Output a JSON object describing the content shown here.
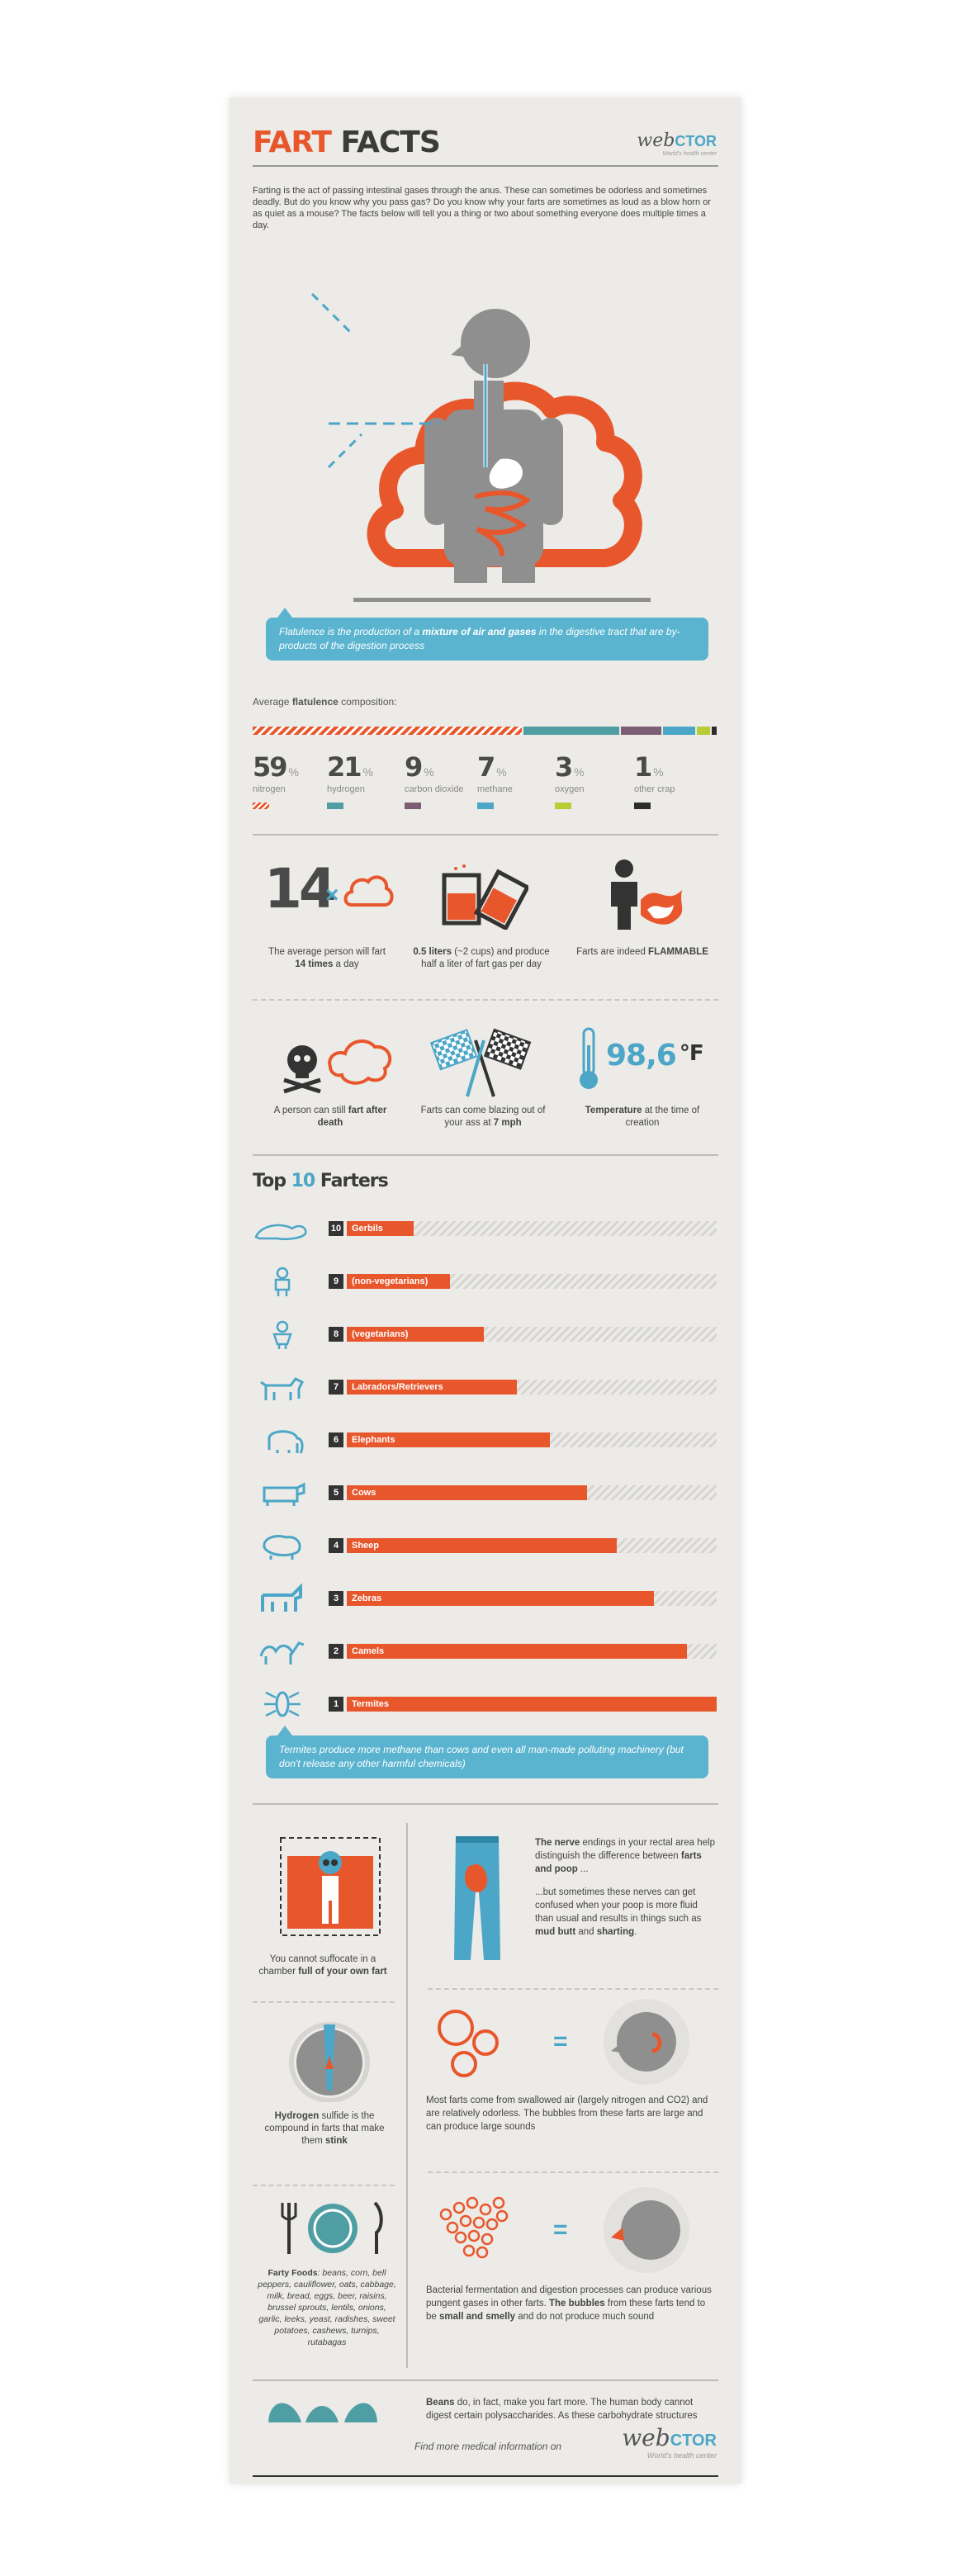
{
  "header": {
    "title_part1": "FART",
    "title_part2": "FACTS",
    "logo_main": "web",
    "logo_accent": "CTOR",
    "logo_tagline": "World's health center"
  },
  "intro": "Farting is the act of passing intestinal gases through the anus. These can sometimes be odorless and sometimes deadly. But do you know why you pass gas? Do you know why your farts are sometimes as loud as a blow horn or as quiet as a mouse? The facts below will tell you a thing or two about something everyone does multiple times a day.",
  "definition": {
    "pre": "Flatulence is the production of a ",
    "bold": "mixture of air and gases",
    "post": " in the digestive tract that are by-products of the digestion process"
  },
  "composition": {
    "label_pre": "Average ",
    "label_bold": "flatulence",
    "label_post": " composition:",
    "items": [
      {
        "value": "59",
        "unit": "%",
        "name": "nitrogen",
        "color": "#e8572c"
      },
      {
        "value": "21",
        "unit": "%",
        "name": "hydrogen",
        "color": "#4f9ea4"
      },
      {
        "value": "9",
        "unit": "%",
        "name": "carbon dioxide",
        "color": "#7b5d74"
      },
      {
        "value": "7",
        "unit": "%",
        "name": "methane",
        "color": "#4ca6c7"
      },
      {
        "value": "3",
        "unit": "%",
        "name": "oxygen",
        "color": "#b7cc35"
      },
      {
        "value": "1",
        "unit": "%",
        "name": "other crap",
        "color": "#2c2c2c"
      }
    ]
  },
  "facts_row1": {
    "times_number": "14",
    "times_symbol": "×",
    "fact1_pre": "The average person will fart",
    "fact1_bold": "14 times",
    "fact1_post": " a day",
    "fact2_bold": "0.5 liters",
    "fact2_post": " (~2 cups) and produce half a liter of fart gas per day",
    "fact3_pre": "Farts are indeed ",
    "fact3_bold": "FLAMMABLE"
  },
  "facts_row2": {
    "fact1_pre": "A person can still ",
    "fact1_bold": "fart after death",
    "fact2_pre": "Farts can come blazing out of your ass at ",
    "fact2_bold": "7 mph",
    "temp_value": "98,6",
    "temp_unit": "°F",
    "fact3_bold": "Temperature",
    "fact3_post": " at the time of creation"
  },
  "top10": {
    "title_pre": "Top ",
    "title_num": "10",
    "title_post": " Farters",
    "rows": [
      {
        "rank": "10",
        "label": "Gerbils",
        "value": 0.18,
        "icon": "gerbil-icon"
      },
      {
        "rank": "9",
        "label": "(non-vegetarians)",
        "value": 0.28,
        "icon": "man-icon"
      },
      {
        "rank": "8",
        "label": "(vegetarians)",
        "value": 0.37,
        "icon": "person-icon"
      },
      {
        "rank": "7",
        "label": "Labradors/Retrievers",
        "value": 0.46,
        "icon": "dog-icon"
      },
      {
        "rank": "6",
        "label": "Elephants",
        "value": 0.55,
        "icon": "elephant-icon"
      },
      {
        "rank": "5",
        "label": "Cows",
        "value": 0.65,
        "icon": "cow-icon"
      },
      {
        "rank": "4",
        "label": "Sheep",
        "value": 0.73,
        "icon": "sheep-icon"
      },
      {
        "rank": "3",
        "label": "Zebras",
        "value": 0.83,
        "icon": "zebra-icon"
      },
      {
        "rank": "2",
        "label": "Camels",
        "value": 0.92,
        "icon": "camel-icon"
      },
      {
        "rank": "1",
        "label": "Termites",
        "value": 1.0,
        "icon": "termite-icon"
      }
    ],
    "note": "Termites produce more methane than cows and even all man-made polluting machinery (but don't release any other harmful chemicals)"
  },
  "lower": {
    "suffocate_pre": "You cannot suffocate in a chamber ",
    "suffocate_bold": "full of your own fart",
    "nerve_p1_bold1": "The nerve",
    "nerve_p1_mid": " endings in your rectal area help distinguish the difference between ",
    "nerve_p1_bold2": "farts and poop",
    "nerve_p1_end": " ...",
    "nerve_p2_pre": "...but sometimes these nerves can get confused when your poop is more fluid than usual and results in things such as ",
    "nerve_p2_bold1": "mud butt",
    "nerve_p2_mid": " and ",
    "nerve_p2_bold2": "sharting",
    "nerve_p2_end": ".",
    "h2s_bold": "Hydrogen",
    "h2s_mid": " sulfide is the compound in farts that make them ",
    "h2s_bold2": "stink",
    "swallowed": "Most farts come from swallowed air (largely nitrogen and CO2) and are relatively odorless. The bubbles from these farts are large and can produce large sounds",
    "foods_bold": "Farty Foods",
    "foods_list": ": beans, corn, bell peppers, cauliflower, oats, cabbage, milk, bread, eggs, beer, raisins, brussel sprouts, lentils, onions, garlic, leeks, yeast, radishes, sweet potatoes, cashews, turnips, rutabagas",
    "bacterial_pre": "Bacterial fermentation and digestion processes can produce various pungent gases in other farts. ",
    "bacterial_bold1": "The bubbles",
    "bacterial_mid": " from these farts tend to be ",
    "bacterial_bold2": "small and smelly",
    "bacterial_end": " and do not produce much sound",
    "beans_bold": "Beans",
    "beans_rest": " do, in fact, make you fart more. The human body cannot digest certain polysaccharides. As these carbohydrate structures reach the lower intestine, bacteria feed on them, producing a lot of flatus"
  },
  "footer": {
    "more_info": "Find more medical information on",
    "logo_main": "web",
    "logo_accent": "CTOR",
    "logo_tagline": "World's health center"
  }
}
